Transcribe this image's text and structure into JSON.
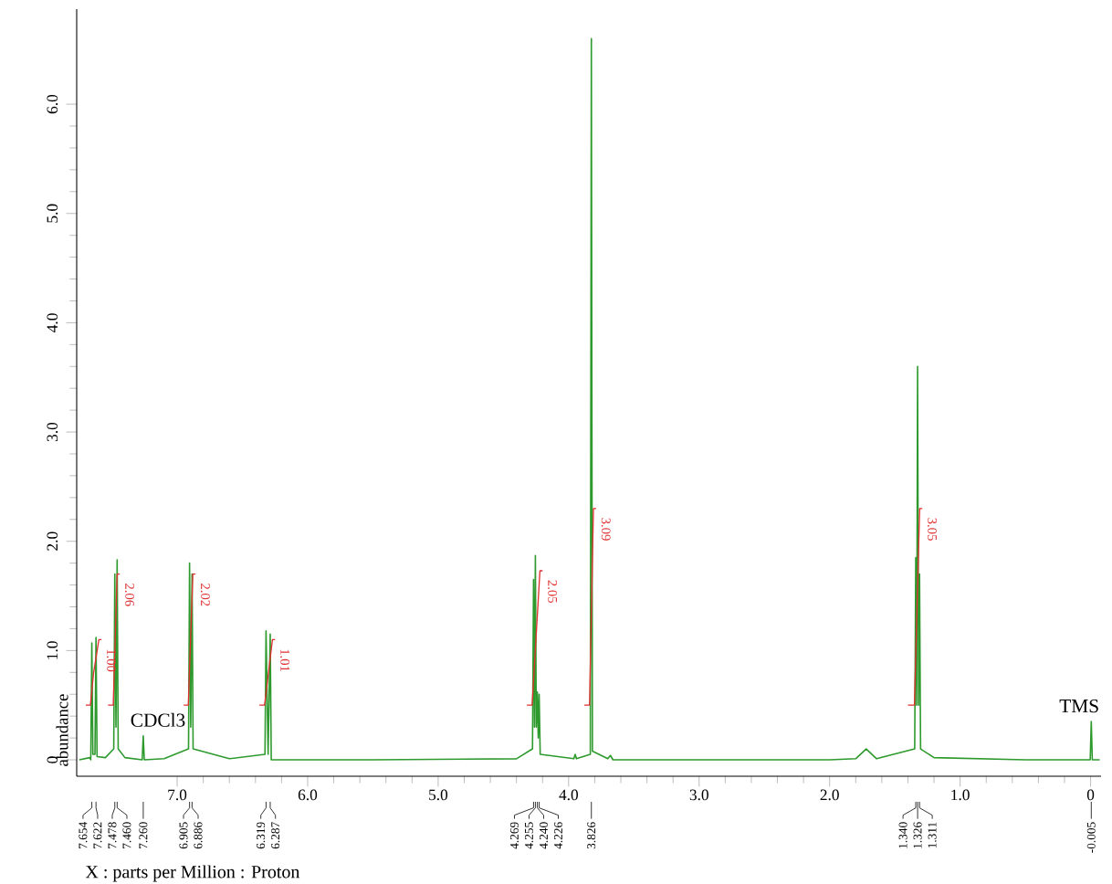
{
  "chart_data": {
    "type": "line",
    "xlabel": "X : parts per Million : Proton",
    "ylabel": "abundance",
    "xlim": [
      7.77,
      -0.08
    ],
    "ylim": [
      -0.15,
      6.87
    ],
    "xticks": [
      {
        "value": 7,
        "label": "7.0"
      },
      {
        "value": 6,
        "label": "6.0"
      },
      {
        "value": 5,
        "label": "5.0"
      },
      {
        "value": 4,
        "label": "4.0"
      },
      {
        "value": 3,
        "label": "3.0"
      },
      {
        "value": 2,
        "label": "2.0"
      },
      {
        "value": 1,
        "label": "1.0"
      },
      0
    ],
    "yticks": [
      0,
      {
        "value": 1,
        "label": "1.0"
      },
      {
        "value": 2,
        "label": "2.0"
      },
      {
        "value": 3,
        "label": "3.0"
      },
      {
        "value": 4,
        "label": "4.0"
      },
      {
        "value": 5,
        "label": "5.0"
      },
      {
        "value": 6,
        "label": "6.0"
      }
    ],
    "series": [
      {
        "type": "line",
        "color": "#2e9a2e",
        "x": [
          7.75,
          7.67,
          7.662,
          7.654,
          7.646,
          7.63,
          7.622,
          7.614,
          7.55,
          7.486,
          7.478,
          7.469,
          7.46,
          7.452,
          7.4,
          7.268,
          7.26,
          7.252,
          7.1,
          6.913,
          6.905,
          6.896,
          6.886,
          6.878,
          6.6,
          6.327,
          6.319,
          6.303,
          6.287,
          6.279,
          5.5,
          4.4,
          4.277,
          4.269,
          4.262,
          4.255,
          4.248,
          4.24,
          4.233,
          4.226,
          4.218,
          3.96,
          3.95,
          3.94,
          3.834,
          3.826,
          3.818,
          3.7,
          3.68,
          3.66,
          2.0,
          1.8,
          1.72,
          1.64,
          1.348,
          1.34,
          1.333,
          1.326,
          1.318,
          1.311,
          1.303,
          1.2,
          0.5,
          0.003,
          -0.005,
          -0.013,
          -0.07
        ],
        "values": [
          0,
          0.02,
          0,
          1.07,
          0.05,
          0.05,
          1.12,
          0.03,
          0.02,
          0.1,
          1.7,
          0.3,
          1.83,
          0.1,
          0.02,
          0,
          0.22,
          0,
          0.01,
          0.1,
          1.8,
          0.3,
          1.7,
          0.1,
          0.01,
          0.05,
          1.18,
          0.05,
          1.15,
          0,
          0,
          0.01,
          0.1,
          1.65,
          0.3,
          1.87,
          0.3,
          0.62,
          0.2,
          0.6,
          0.05,
          0.01,
          0.05,
          0.01,
          0.05,
          6.6,
          0.08,
          0.01,
          0.04,
          0,
          0,
          0.01,
          0.1,
          0.01,
          0.1,
          1.85,
          0.5,
          3.6,
          0.5,
          1.7,
          0.1,
          0.02,
          0,
          0,
          0.35,
          0,
          0
        ]
      },
      {
        "type": "line",
        "color": "#e03030",
        "x": [
          7.7,
          7.665,
          7.64,
          7.6,
          7.58
        ],
        "values": [
          0.5,
          0.5,
          0.8,
          1.1,
          1.1
        ]
      },
      {
        "type": "line",
        "color": "#e03030",
        "x": [
          7.53,
          7.49,
          7.46,
          7.44
        ],
        "values": [
          0.5,
          0.5,
          1.7,
          1.7
        ]
      },
      {
        "type": "line",
        "color": "#e03030",
        "x": [
          6.95,
          6.915,
          6.88,
          6.86
        ],
        "values": [
          0.5,
          0.5,
          1.7,
          1.7
        ]
      },
      {
        "type": "line",
        "color": "#e03030",
        "x": [
          6.37,
          6.33,
          6.3,
          6.27,
          6.25
        ],
        "values": [
          0.5,
          0.5,
          0.8,
          1.1,
          1.1
        ]
      },
      {
        "type": "line",
        "color": "#e03030",
        "x": [
          4.32,
          4.28,
          4.22,
          4.2
        ],
        "values": [
          0.5,
          0.5,
          1.73,
          1.73
        ]
      },
      {
        "type": "line",
        "color": "#e03030",
        "x": [
          3.88,
          3.84,
          3.81,
          3.79
        ],
        "values": [
          0.5,
          0.5,
          2.3,
          2.3
        ]
      },
      {
        "type": "line",
        "color": "#e03030",
        "x": [
          1.4,
          1.35,
          1.31,
          1.29
        ],
        "values": [
          0.5,
          0.5,
          2.3,
          2.3
        ]
      }
    ],
    "annotations": [
      "7.654",
      "7.622",
      "7.478",
      "7.460",
      "7.260",
      "6.905",
      "6.886",
      "6.319",
      "6.287",
      "4.269",
      "4.255",
      "4.240",
      "4.226",
      "3.826",
      "1.340",
      "1.326",
      "1.311",
      "-0.005",
      {
        "text": "1.00",
        "x": 7.58,
        "y": 1.1
      },
      {
        "text": "2.06",
        "x": 7.44,
        "y": 1.7
      },
      {
        "text": "2.02",
        "x": 6.86,
        "y": 1.7
      },
      {
        "text": "1.01",
        "x": 6.25,
        "y": 1.1
      },
      {
        "text": "2.05",
        "x": 4.2,
        "y": 1.73
      },
      {
        "text": "3.09",
        "x": 3.79,
        "y": 2.3
      },
      {
        "text": "3.05",
        "x": 1.29,
        "y": 2.3
      },
      {
        "text": "CDCl3",
        "x": 7.26,
        "y": 0.22
      },
      {
        "text": "TMS",
        "x": -0.005,
        "y": 0.35
      }
    ]
  }
}
